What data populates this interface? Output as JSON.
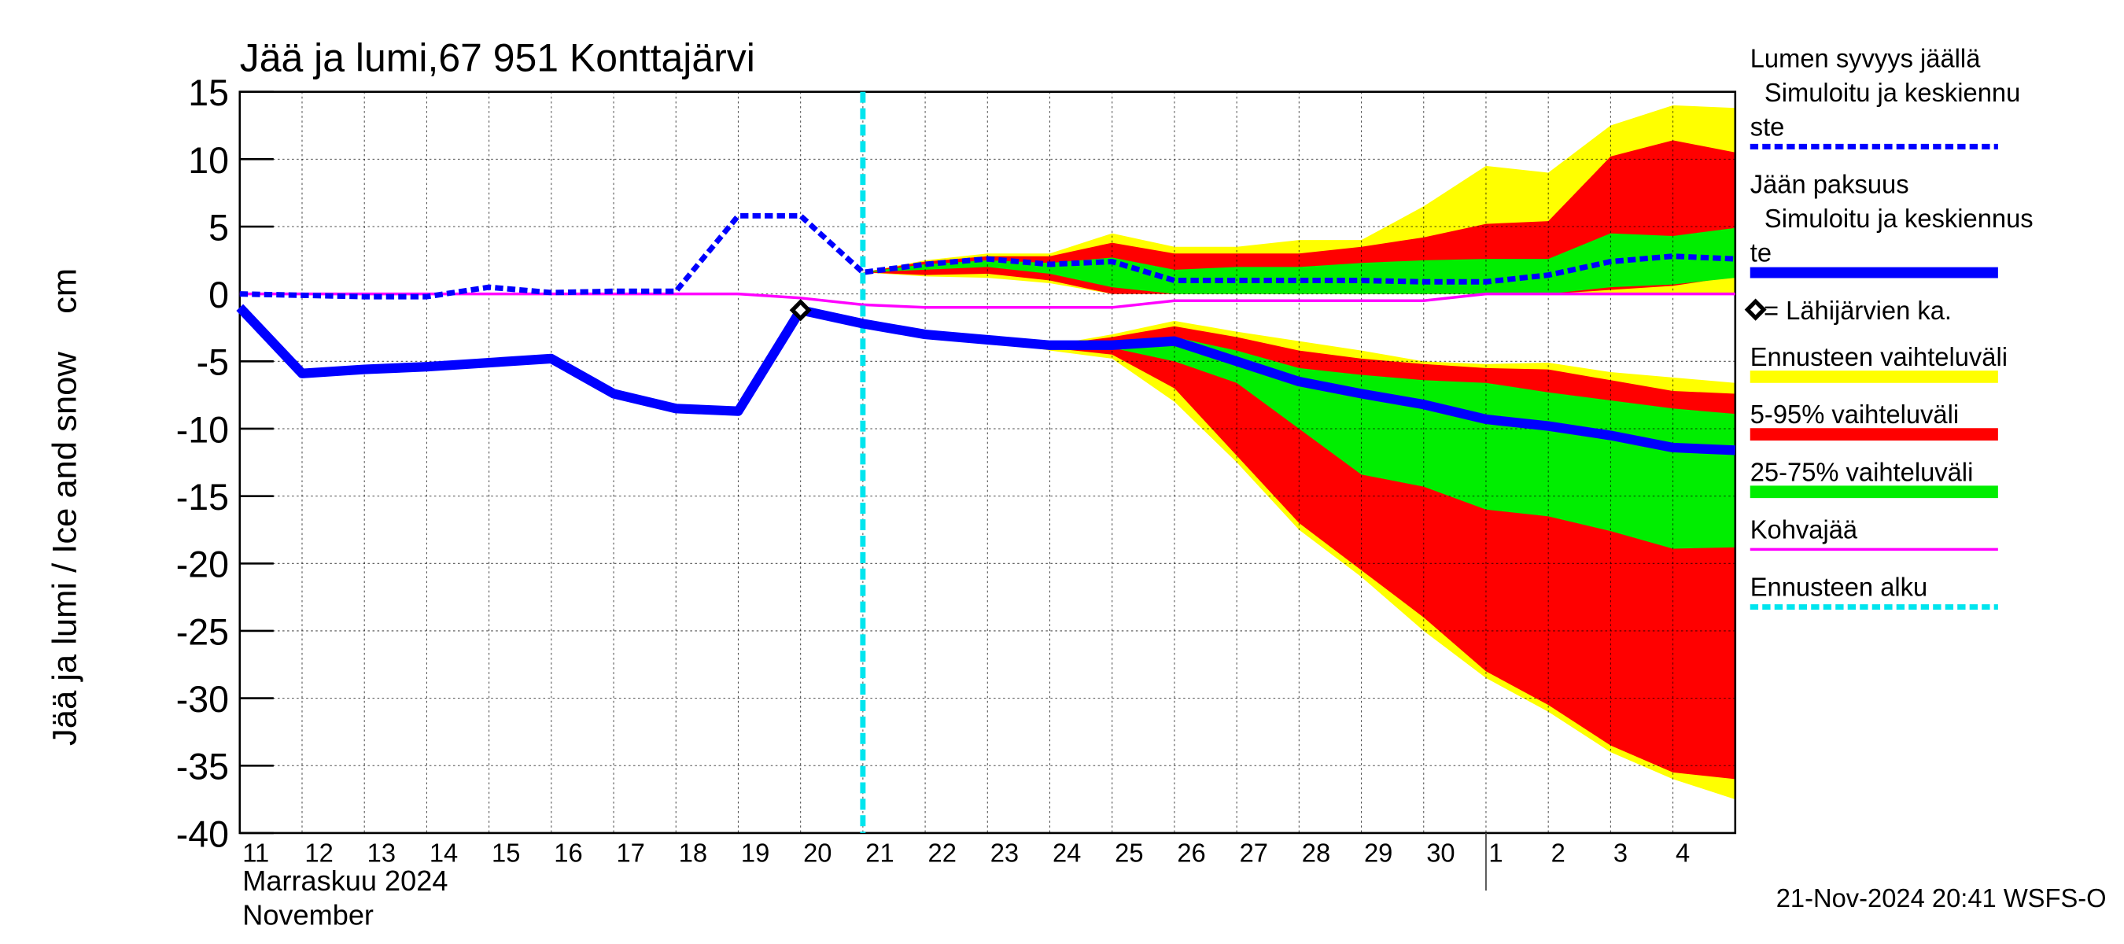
{
  "chart_data": {
    "type": "line",
    "title": "Jää ja lumi,67 951 Konttajärvi",
    "y_label": "Jää ja lumi / Ice and snow    cm",
    "x_label": [
      "Marraskuu 2024",
      "November"
    ],
    "timestamp": "21-Nov-2024 20:41 WSFS-O",
    "categories": [
      "11",
      "12",
      "13",
      "14",
      "15",
      "16",
      "17",
      "18",
      "19",
      "20",
      "21",
      "22",
      "23",
      "24",
      "25",
      "26",
      "27",
      "28",
      "29",
      "30",
      "1",
      "2",
      "3",
      "4",
      null
    ],
    "month_break_category": "1",
    "forecast_start_category": "21",
    "ylim": [
      -40,
      15
    ],
    "yticks": [
      15,
      10,
      5,
      0,
      -5,
      -10,
      -15,
      -20,
      -25,
      -30,
      -35,
      -40
    ],
    "grid": true,
    "series": [
      {
        "name": [
          "Lumen syvyys jäällä",
          "  Simuloitu ja keskiennu",
          "ste"
        ],
        "kind": "line",
        "dashed": true,
        "width": 4,
        "color": "#0000ff",
        "values": [
          0,
          -0.1,
          -0.2,
          -0.2,
          0.5,
          0.1,
          0.2,
          0.2,
          5.8,
          5.8,
          1.6,
          2.2,
          2.6,
          2.2,
          2.4,
          1.0,
          1.0,
          1.0,
          1.0,
          0.9,
          0.9,
          1.4,
          2.4,
          2.8,
          2.6
        ]
      },
      {
        "name": [
          "Jään paksuus",
          "  Simuloitu ja keskiennus",
          "te"
        ],
        "kind": "line",
        "dashed": false,
        "width": 7,
        "color": "#0000ff",
        "values": [
          -1.0,
          -5.9,
          -5.6,
          -5.4,
          -5.1,
          -4.8,
          -7.4,
          -8.5,
          -8.7,
          -1.2,
          -2.2,
          -3.0,
          -3.4,
          -3.8,
          -3.8,
          -3.5,
          -5.0,
          -6.5,
          -7.4,
          -8.2,
          -9.3,
          -9.8,
          -10.5,
          -11.4,
          -11.6
        ]
      },
      {
        "name": [
          "= Lähijärvien ka."
        ],
        "kind": "marker",
        "color": "#000000",
        "values": [
          null,
          null,
          null,
          null,
          null,
          null,
          null,
          null,
          null,
          -1.2,
          null,
          null,
          null,
          null,
          null,
          null,
          null,
          null,
          null,
          null,
          null,
          null,
          null,
          null,
          null
        ]
      },
      {
        "name": [
          "Ennusteen vaihteluväli"
        ],
        "kind": "band",
        "color": "#ffff00",
        "bands": [
          {
            "high": [
              null,
              null,
              null,
              null,
              null,
              null,
              null,
              null,
              null,
              null,
              1.6,
              2.5,
              3,
              3,
              4.5,
              3.5,
              3.5,
              4,
              4,
              6.5,
              9.5,
              9,
              12.5,
              14,
              13.8
            ],
            "low": [
              null,
              null,
              null,
              null,
              null,
              null,
              null,
              null,
              null,
              null,
              1.6,
              1.3,
              1.2,
              0.8,
              0,
              0,
              0,
              0,
              0,
              0,
              0,
              0,
              0,
              0,
              0
            ]
          },
          {
            "high": [
              null,
              null,
              null,
              null,
              null,
              null,
              null,
              null,
              null,
              null,
              -2.2,
              -3,
              -3.4,
              -3.8,
              -3,
              -2,
              -2.8,
              -3.5,
              -4.2,
              -5,
              -5.2,
              -5.1,
              -5.8,
              -6.2,
              -6.6
            ],
            "low": [
              null,
              null,
              null,
              null,
              null,
              null,
              null,
              null,
              null,
              null,
              -2.2,
              -3,
              -3.4,
              -4.2,
              -4.8,
              -8,
              -12.5,
              -17.5,
              -21,
              -25,
              -28.5,
              -31,
              -34,
              -36,
              -37.5
            ]
          }
        ]
      },
      {
        "name": [
          "5-95% vaihteluväli"
        ],
        "kind": "band",
        "color": "#ff0000",
        "bands": [
          {
            "high": [
              null,
              null,
              null,
              null,
              null,
              null,
              null,
              null,
              null,
              null,
              1.6,
              2.4,
              2.8,
              2.8,
              3.8,
              3,
              3,
              3,
              3.5,
              4.2,
              5.2,
              5.4,
              10.2,
              11.4,
              10.5
            ],
            "low": [
              null,
              null,
              null,
              null,
              null,
              null,
              null,
              null,
              null,
              null,
              1.6,
              1.4,
              1.5,
              1,
              0,
              0,
              0,
              0,
              0,
              0,
              0,
              0,
              0.3,
              0.6,
              1.3
            ]
          },
          {
            "high": [
              null,
              null,
              null,
              null,
              null,
              null,
              null,
              null,
              null,
              null,
              -2.2,
              -3,
              -3.4,
              -3.8,
              -3.2,
              -2.4,
              -3.2,
              -4.2,
              -4.8,
              -5.2,
              -5.5,
              -5.6,
              -6.4,
              -7.2,
              -7.4
            ],
            "low": [
              null,
              null,
              null,
              null,
              null,
              null,
              null,
              null,
              null,
              null,
              -2.2,
              -3,
              -3.4,
              -4,
              -4.5,
              -7,
              -12,
              -17,
              -20.5,
              -24,
              -28,
              -30.5,
              -33.5,
              -35.5,
              -36
            ]
          }
        ]
      },
      {
        "name": [
          "25-75% vaihteluväli"
        ],
        "kind": "band",
        "color": "#00ee00",
        "bands": [
          {
            "high": [
              null,
              null,
              null,
              null,
              null,
              null,
              null,
              null,
              null,
              null,
              1.6,
              2.2,
              2.5,
              2.3,
              2.7,
              1.8,
              2,
              2,
              2.3,
              2.5,
              2.6,
              2.6,
              4.5,
              4.3,
              4.9
            ],
            "low": [
              null,
              null,
              null,
              null,
              null,
              null,
              null,
              null,
              null,
              null,
              1.6,
              1.8,
              2,
              1.5,
              0.5,
              0,
              0,
              0,
              0,
              0,
              0,
              0,
              0.5,
              0.7,
              1.2
            ]
          },
          {
            "high": [
              null,
              null,
              null,
              null,
              null,
              null,
              null,
              null,
              null,
              null,
              -2.2,
              -3,
              -3.4,
              -3.8,
              -3.6,
              -3.2,
              -4.2,
              -5.5,
              -6,
              -6.4,
              -6.6,
              -7.3,
              -7.9,
              -8.5,
              -8.9
            ],
            "low": [
              null,
              null,
              null,
              null,
              null,
              null,
              null,
              null,
              null,
              null,
              -2.2,
              -3,
              -3.4,
              -3.8,
              -4,
              -5,
              -6.6,
              -10,
              -13.4,
              -14.3,
              -16,
              -16.5,
              -17.6,
              -18.9,
              -18.8
            ]
          }
        ]
      },
      {
        "name": [
          "Kohvajää"
        ],
        "kind": "line",
        "dashed": false,
        "width": 2,
        "color": "#ff00ff",
        "values": [
          0,
          0,
          0,
          0,
          0,
          0,
          0,
          0,
          0,
          -0.3,
          -0.8,
          -1,
          -1,
          -1,
          -1,
          -0.5,
          -0.5,
          -0.5,
          -0.5,
          -0.5,
          0,
          0,
          0,
          0,
          0
        ]
      },
      {
        "name": [
          "Ennusteen alku"
        ],
        "kind": "vline",
        "dashed": true,
        "width": 4,
        "color": "#00e5ee"
      }
    ]
  }
}
